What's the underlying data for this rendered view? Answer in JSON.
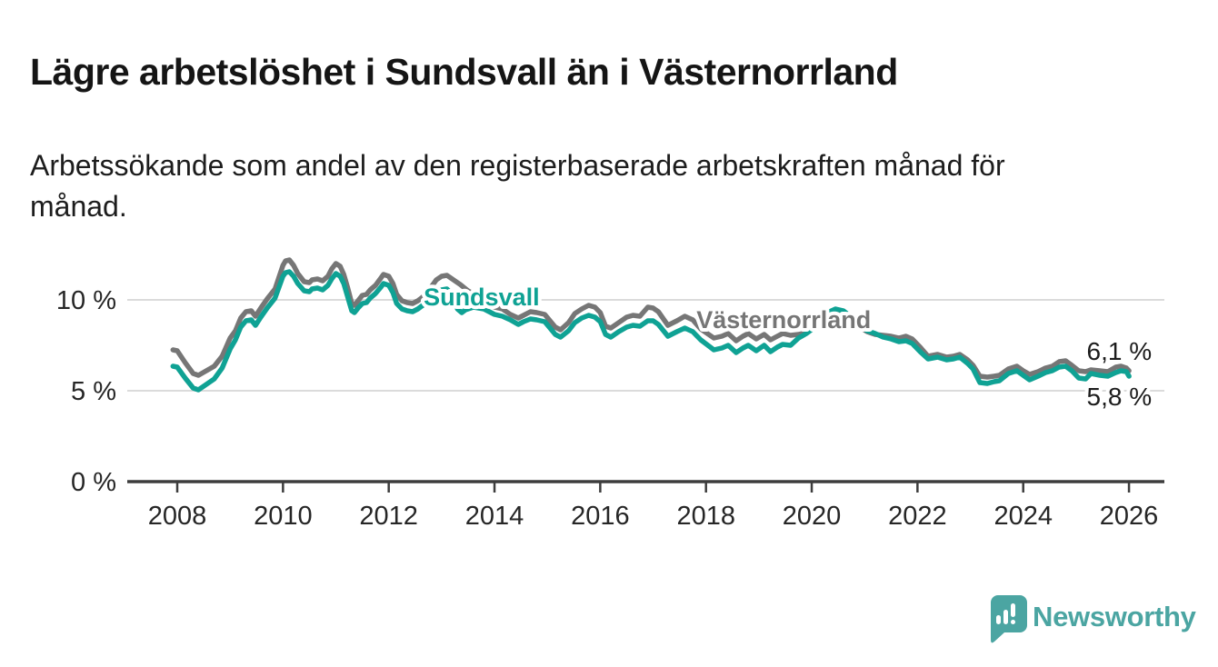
{
  "title": "Lägre arbetslöshet i Sundsvall än i Västernorrland",
  "subtitle": "Arbetssökande som andel av den registerbaserade arbetskraften månad för månad.",
  "subtitle_lines": [
    "Arbetssökande som andel av den registerbaserade arbetskraften månad för",
    "månad."
  ],
  "branding": {
    "logo_text": "Newsworthy",
    "brand_color": "#4BA5A2"
  },
  "chart_data": {
    "type": "line",
    "unit": "%",
    "grid": "horizontal",
    "x_axis": {
      "ticks": [
        2008,
        2010,
        2012,
        2014,
        2016,
        2018,
        2020,
        2022,
        2024,
        2026
      ],
      "min": 2007.05,
      "max": 2026.67
    },
    "y_axis": {
      "ticks": [
        0,
        5,
        10
      ],
      "tick_labels": [
        "0 %",
        "5 %",
        "10 %"
      ],
      "min": 0,
      "max": 12.5
    },
    "series": [
      {
        "name": "Västernorrland",
        "color": "#767676",
        "end_label": "6,1 %",
        "label_anchor": [
          2017.82,
          8.45
        ],
        "end_label_anchor": [
          2025.2,
          6.7
        ],
        "points": [
          [
            2007.92,
            7.25
          ],
          [
            2008.0,
            7.2
          ],
          [
            2008.15,
            6.55
          ],
          [
            2008.3,
            5.95
          ],
          [
            2008.4,
            5.85
          ],
          [
            2008.55,
            6.1
          ],
          [
            2008.7,
            6.35
          ],
          [
            2008.85,
            6.9
          ],
          [
            2009.0,
            7.9
          ],
          [
            2009.1,
            8.3
          ],
          [
            2009.2,
            9.0
          ],
          [
            2009.3,
            9.35
          ],
          [
            2009.4,
            9.4
          ],
          [
            2009.48,
            9.1
          ],
          [
            2009.58,
            9.55
          ],
          [
            2009.7,
            10.05
          ],
          [
            2009.85,
            10.6
          ],
          [
            2010.0,
            11.9
          ],
          [
            2010.05,
            12.15
          ],
          [
            2010.12,
            12.2
          ],
          [
            2010.2,
            11.9
          ],
          [
            2010.28,
            11.45
          ],
          [
            2010.4,
            11.0
          ],
          [
            2010.5,
            10.95
          ],
          [
            2010.55,
            11.1
          ],
          [
            2010.65,
            11.15
          ],
          [
            2010.75,
            11.05
          ],
          [
            2010.85,
            11.3
          ],
          [
            2010.92,
            11.7
          ],
          [
            2011.0,
            12.0
          ],
          [
            2011.08,
            11.85
          ],
          [
            2011.15,
            11.4
          ],
          [
            2011.22,
            10.7
          ],
          [
            2011.3,
            9.8
          ],
          [
            2011.35,
            9.7
          ],
          [
            2011.42,
            9.95
          ],
          [
            2011.5,
            10.25
          ],
          [
            2011.58,
            10.3
          ],
          [
            2011.65,
            10.55
          ],
          [
            2011.75,
            10.8
          ],
          [
            2011.85,
            11.2
          ],
          [
            2011.9,
            11.4
          ],
          [
            2012.0,
            11.3
          ],
          [
            2012.08,
            10.9
          ],
          [
            2012.15,
            10.3
          ],
          [
            2012.25,
            9.95
          ],
          [
            2012.35,
            9.85
          ],
          [
            2012.45,
            9.8
          ],
          [
            2012.55,
            9.95
          ],
          [
            2012.62,
            10.1
          ],
          [
            2012.7,
            10.3
          ],
          [
            2012.8,
            10.7
          ],
          [
            2012.9,
            11.1
          ],
          [
            2013.0,
            11.3
          ],
          [
            2013.1,
            11.35
          ],
          [
            2013.2,
            11.15
          ],
          [
            2013.35,
            10.85
          ],
          [
            2013.5,
            10.5
          ],
          [
            2013.65,
            10.25
          ],
          [
            2013.8,
            10.0
          ],
          [
            2014.0,
            9.6
          ],
          [
            2014.15,
            9.5
          ],
          [
            2014.3,
            9.2
          ],
          [
            2014.45,
            9.0
          ],
          [
            2014.55,
            9.15
          ],
          [
            2014.68,
            9.35
          ],
          [
            2014.8,
            9.3
          ],
          [
            2014.95,
            9.2
          ],
          [
            2015.15,
            8.5
          ],
          [
            2015.25,
            8.35
          ],
          [
            2015.4,
            8.75
          ],
          [
            2015.52,
            9.25
          ],
          [
            2015.65,
            9.5
          ],
          [
            2015.78,
            9.7
          ],
          [
            2015.9,
            9.6
          ],
          [
            2016.0,
            9.3
          ],
          [
            2016.1,
            8.55
          ],
          [
            2016.2,
            8.45
          ],
          [
            2016.35,
            8.75
          ],
          [
            2016.5,
            9.05
          ],
          [
            2016.62,
            9.15
          ],
          [
            2016.75,
            9.1
          ],
          [
            2016.9,
            9.6
          ],
          [
            2017.0,
            9.55
          ],
          [
            2017.1,
            9.35
          ],
          [
            2017.28,
            8.6
          ],
          [
            2017.45,
            8.85
          ],
          [
            2017.6,
            9.1
          ],
          [
            2017.75,
            8.9
          ],
          [
            2017.9,
            8.4
          ],
          [
            2018.15,
            7.9
          ],
          [
            2018.3,
            8.0
          ],
          [
            2018.42,
            8.15
          ],
          [
            2018.57,
            7.75
          ],
          [
            2018.7,
            8.0
          ],
          [
            2018.8,
            8.15
          ],
          [
            2018.95,
            7.85
          ],
          [
            2019.1,
            8.1
          ],
          [
            2019.22,
            7.8
          ],
          [
            2019.35,
            8.0
          ],
          [
            2019.45,
            8.15
          ],
          [
            2019.6,
            8.05
          ],
          [
            2019.75,
            8.1
          ],
          [
            2019.9,
            8.2
          ],
          [
            2020.1,
            8.6
          ],
          [
            2020.3,
            9.2
          ],
          [
            2020.45,
            9.4
          ],
          [
            2020.6,
            9.35
          ],
          [
            2020.75,
            9.0
          ],
          [
            2020.9,
            8.5
          ],
          [
            2021.05,
            8.25
          ],
          [
            2021.2,
            8.1
          ],
          [
            2021.35,
            8.05
          ],
          [
            2021.5,
            8.0
          ],
          [
            2021.65,
            7.9
          ],
          [
            2021.78,
            8.0
          ],
          [
            2021.9,
            7.85
          ],
          [
            2022.05,
            7.4
          ],
          [
            2022.2,
            6.9
          ],
          [
            2022.38,
            7.0
          ],
          [
            2022.55,
            6.85
          ],
          [
            2022.68,
            6.9
          ],
          [
            2022.8,
            7.0
          ],
          [
            2022.95,
            6.7
          ],
          [
            2023.05,
            6.4
          ],
          [
            2023.18,
            5.8
          ],
          [
            2023.32,
            5.75
          ],
          [
            2023.45,
            5.8
          ],
          [
            2023.55,
            5.85
          ],
          [
            2023.72,
            6.2
          ],
          [
            2023.88,
            6.35
          ],
          [
            2024.0,
            6.1
          ],
          [
            2024.12,
            5.9
          ],
          [
            2024.28,
            6.05
          ],
          [
            2024.42,
            6.25
          ],
          [
            2024.55,
            6.35
          ],
          [
            2024.68,
            6.6
          ],
          [
            2024.8,
            6.65
          ],
          [
            2024.92,
            6.4
          ],
          [
            2025.05,
            6.1
          ],
          [
            2025.18,
            6.05
          ],
          [
            2025.28,
            6.15
          ],
          [
            2025.45,
            6.1
          ],
          [
            2025.6,
            6.05
          ],
          [
            2025.75,
            6.3
          ],
          [
            2025.85,
            6.35
          ],
          [
            2025.95,
            6.25
          ],
          [
            2026.0,
            6.1
          ]
        ]
      },
      {
        "name": "Sundsvall",
        "color": "#0FA294",
        "end_label": "5,8 %",
        "label_anchor": [
          2012.66,
          9.7
        ],
        "end_label_anchor": [
          2025.2,
          4.2
        ],
        "points": [
          [
            2007.92,
            6.35
          ],
          [
            2008.0,
            6.3
          ],
          [
            2008.15,
            5.7
          ],
          [
            2008.3,
            5.15
          ],
          [
            2008.4,
            5.05
          ],
          [
            2008.55,
            5.35
          ],
          [
            2008.7,
            5.65
          ],
          [
            2008.85,
            6.25
          ],
          [
            2009.0,
            7.3
          ],
          [
            2009.1,
            7.8
          ],
          [
            2009.2,
            8.5
          ],
          [
            2009.3,
            8.85
          ],
          [
            2009.4,
            8.9
          ],
          [
            2009.48,
            8.6
          ],
          [
            2009.58,
            9.05
          ],
          [
            2009.7,
            9.55
          ],
          [
            2009.85,
            10.1
          ],
          [
            2010.0,
            11.3
          ],
          [
            2010.05,
            11.5
          ],
          [
            2010.12,
            11.55
          ],
          [
            2010.2,
            11.3
          ],
          [
            2010.28,
            10.9
          ],
          [
            2010.4,
            10.5
          ],
          [
            2010.5,
            10.45
          ],
          [
            2010.55,
            10.6
          ],
          [
            2010.65,
            10.65
          ],
          [
            2010.75,
            10.55
          ],
          [
            2010.85,
            10.8
          ],
          [
            2010.92,
            11.15
          ],
          [
            2011.0,
            11.45
          ],
          [
            2011.08,
            11.3
          ],
          [
            2011.15,
            10.9
          ],
          [
            2011.22,
            10.2
          ],
          [
            2011.3,
            9.4
          ],
          [
            2011.35,
            9.3
          ],
          [
            2011.42,
            9.55
          ],
          [
            2011.5,
            9.8
          ],
          [
            2011.58,
            9.85
          ],
          [
            2011.65,
            10.1
          ],
          [
            2011.75,
            10.35
          ],
          [
            2011.85,
            10.7
          ],
          [
            2011.9,
            10.9
          ],
          [
            2012.0,
            10.8
          ],
          [
            2012.08,
            10.4
          ],
          [
            2012.15,
            9.8
          ],
          [
            2012.25,
            9.5
          ],
          [
            2012.35,
            9.4
          ],
          [
            2012.45,
            9.35
          ],
          [
            2012.55,
            9.5
          ],
          [
            2012.62,
            9.65
          ],
          [
            2012.7,
            9.8
          ],
          [
            2012.8,
            10.05
          ],
          [
            2012.9,
            10.35
          ],
          [
            2013.0,
            10.55
          ],
          [
            2013.1,
            10.6
          ],
          [
            2013.2,
            10.3
          ],
          [
            2013.3,
            9.5
          ],
          [
            2013.38,
            9.3
          ],
          [
            2013.45,
            9.45
          ],
          [
            2013.6,
            9.6
          ],
          [
            2013.8,
            9.5
          ],
          [
            2014.0,
            9.2
          ],
          [
            2014.15,
            9.1
          ],
          [
            2014.3,
            8.9
          ],
          [
            2014.45,
            8.65
          ],
          [
            2014.55,
            8.8
          ],
          [
            2014.68,
            8.95
          ],
          [
            2014.8,
            8.9
          ],
          [
            2014.95,
            8.8
          ],
          [
            2015.15,
            8.1
          ],
          [
            2015.25,
            7.95
          ],
          [
            2015.4,
            8.3
          ],
          [
            2015.52,
            8.75
          ],
          [
            2015.65,
            9.0
          ],
          [
            2015.78,
            9.15
          ],
          [
            2015.9,
            9.05
          ],
          [
            2016.0,
            8.8
          ],
          [
            2016.1,
            8.1
          ],
          [
            2016.2,
            7.95
          ],
          [
            2016.35,
            8.25
          ],
          [
            2016.5,
            8.5
          ],
          [
            2016.62,
            8.6
          ],
          [
            2016.75,
            8.55
          ],
          [
            2016.9,
            8.85
          ],
          [
            2017.0,
            8.85
          ],
          [
            2017.1,
            8.65
          ],
          [
            2017.28,
            8.0
          ],
          [
            2017.45,
            8.25
          ],
          [
            2017.6,
            8.45
          ],
          [
            2017.75,
            8.25
          ],
          [
            2017.9,
            7.8
          ],
          [
            2018.15,
            7.25
          ],
          [
            2018.3,
            7.35
          ],
          [
            2018.42,
            7.5
          ],
          [
            2018.57,
            7.1
          ],
          [
            2018.7,
            7.35
          ],
          [
            2018.8,
            7.5
          ],
          [
            2018.95,
            7.2
          ],
          [
            2019.1,
            7.5
          ],
          [
            2019.22,
            7.15
          ],
          [
            2019.35,
            7.4
          ],
          [
            2019.45,
            7.55
          ],
          [
            2019.6,
            7.5
          ],
          [
            2019.75,
            7.9
          ],
          [
            2019.9,
            8.15
          ],
          [
            2020.1,
            8.6
          ],
          [
            2020.3,
            9.3
          ],
          [
            2020.45,
            9.5
          ],
          [
            2020.6,
            9.4
          ],
          [
            2020.75,
            9.05
          ],
          [
            2020.9,
            8.55
          ],
          [
            2021.05,
            8.3
          ],
          [
            2021.2,
            8.15
          ],
          [
            2021.35,
            7.95
          ],
          [
            2021.5,
            7.85
          ],
          [
            2021.65,
            7.7
          ],
          [
            2021.78,
            7.75
          ],
          [
            2021.9,
            7.6
          ],
          [
            2022.05,
            7.15
          ],
          [
            2022.2,
            6.75
          ],
          [
            2022.38,
            6.85
          ],
          [
            2022.55,
            6.7
          ],
          [
            2022.68,
            6.75
          ],
          [
            2022.8,
            6.85
          ],
          [
            2022.95,
            6.5
          ],
          [
            2023.05,
            6.2
          ],
          [
            2023.18,
            5.45
          ],
          [
            2023.32,
            5.4
          ],
          [
            2023.45,
            5.5
          ],
          [
            2023.55,
            5.55
          ],
          [
            2023.72,
            5.95
          ],
          [
            2023.88,
            6.1
          ],
          [
            2024.0,
            5.85
          ],
          [
            2024.12,
            5.6
          ],
          [
            2024.28,
            5.8
          ],
          [
            2024.42,
            6.0
          ],
          [
            2024.55,
            6.1
          ],
          [
            2024.68,
            6.3
          ],
          [
            2024.8,
            6.35
          ],
          [
            2024.92,
            6.1
          ],
          [
            2025.05,
            5.7
          ],
          [
            2025.18,
            5.65
          ],
          [
            2025.28,
            5.95
          ],
          [
            2025.45,
            5.85
          ],
          [
            2025.6,
            5.8
          ],
          [
            2025.75,
            6.0
          ],
          [
            2025.85,
            6.1
          ],
          [
            2025.95,
            6.05
          ],
          [
            2026.0,
            5.8
          ]
        ]
      }
    ]
  }
}
